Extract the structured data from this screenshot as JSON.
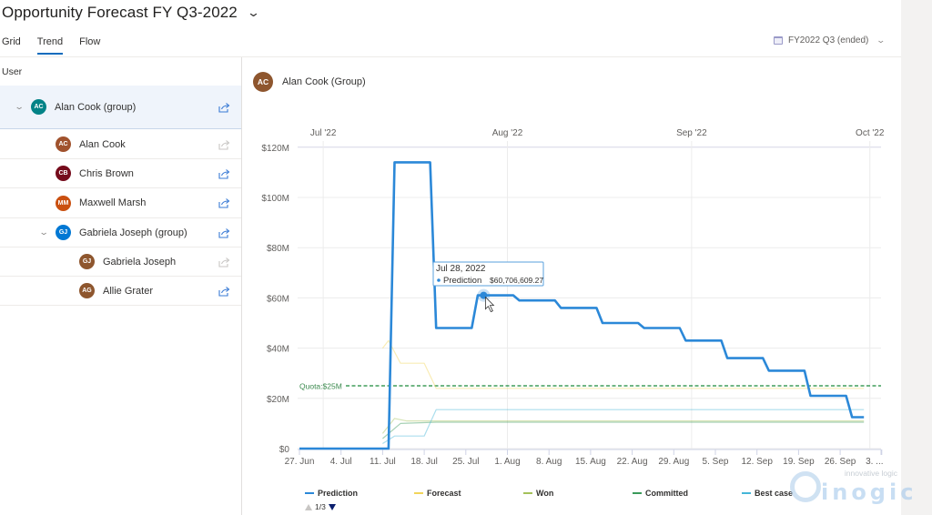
{
  "header": {
    "title": "Opportunity Forecast FY Q3-2022",
    "title_dropdown_icon": "chevron-down-icon",
    "tabs": [
      {
        "label": "Grid",
        "active": false
      },
      {
        "label": "Trend",
        "active": true
      },
      {
        "label": "Flow",
        "active": false
      }
    ],
    "period": {
      "icon": "calendar-icon",
      "label": "FY2022 Q3 (ended)"
    }
  },
  "sidebar": {
    "column_header": "User",
    "rows": [
      {
        "name": "Alan Cook (group)",
        "initials": "AC",
        "color": "#038387",
        "level": 0,
        "expandable": true,
        "selected": true,
        "share_active": true
      },
      {
        "name": "Alan Cook",
        "initials": "AC",
        "color": "#a0522d",
        "level": 1,
        "expandable": false,
        "selected": false,
        "share_active": false
      },
      {
        "name": "Chris Brown",
        "initials": "CB",
        "color": "#750b1c",
        "level": 1,
        "expandable": false,
        "selected": false,
        "share_active": true
      },
      {
        "name": "Maxwell Marsh",
        "initials": "MM",
        "color": "#ca5010",
        "level": 1,
        "expandable": false,
        "selected": false,
        "share_active": true
      },
      {
        "name": "Gabriela Joseph (group)",
        "initials": "GJ",
        "color": "#0078d4",
        "level": 1,
        "expandable": true,
        "selected": false,
        "share_active": true
      },
      {
        "name": "Gabriela Joseph",
        "initials": "GJ",
        "color": "#8e562e",
        "level": 2,
        "expandable": false,
        "selected": false,
        "share_active": false
      },
      {
        "name": "Allie Grater",
        "initials": "AG",
        "color": "#8e562e",
        "level": 2,
        "expandable": false,
        "selected": false,
        "share_active": true
      }
    ]
  },
  "chart_header": {
    "name": "Alan Cook (Group)",
    "initials": "AC",
    "color": "#8e562e"
  },
  "tooltip": {
    "date": "Jul 28, 2022",
    "series": "Prediction",
    "value": "$60,706,609.27"
  },
  "pager": {
    "label": "1/3"
  },
  "watermark": {
    "tagline": "innovative logic",
    "brand": "inogic"
  },
  "chart_data": {
    "type": "line",
    "title": "Alan Cook (Group)",
    "xlabel": "",
    "ylabel": "",
    "ylim": [
      0,
      120000000
    ],
    "y_ticks": [
      "$0",
      "$20M",
      "$40M",
      "$60M",
      "$80M",
      "$100M",
      "$120M"
    ],
    "x_ticks": [
      "27. Jun",
      "4. Jul",
      "11. Jul",
      "18. Jul",
      "25. Jul",
      "1. Aug",
      "8. Aug",
      "15. Aug",
      "22. Aug",
      "29. Aug",
      "5. Sep",
      "12. Sep",
      "19. Sep",
      "26. Sep",
      "3. ..."
    ],
    "x_top_ticks": [
      "Jul '22",
      "Aug '22",
      "Sep '22",
      "Oct '22"
    ],
    "grid": true,
    "legend_position": "bottom",
    "quota": {
      "label": "Quota:$25M",
      "value": 25000000,
      "color": "#1a8a3a"
    },
    "series": [
      {
        "name": "Prediction",
        "color": "#2b88d8",
        "points": [
          [
            "2022-06-27",
            0
          ],
          [
            "2022-07-12",
            0
          ],
          [
            "2022-07-13",
            114000000
          ],
          [
            "2022-07-19",
            114000000
          ],
          [
            "2022-07-20",
            48000000
          ],
          [
            "2022-07-26",
            48000000
          ],
          [
            "2022-07-27",
            61000000
          ],
          [
            "2022-08-02",
            61000000
          ],
          [
            "2022-08-03",
            59000000
          ],
          [
            "2022-08-09",
            59000000
          ],
          [
            "2022-08-10",
            56000000
          ],
          [
            "2022-08-16",
            56000000
          ],
          [
            "2022-08-17",
            50000000
          ],
          [
            "2022-08-23",
            50000000
          ],
          [
            "2022-08-24",
            48000000
          ],
          [
            "2022-08-30",
            48000000
          ],
          [
            "2022-08-31",
            43000000
          ],
          [
            "2022-09-06",
            43000000
          ],
          [
            "2022-09-07",
            36000000
          ],
          [
            "2022-09-13",
            36000000
          ],
          [
            "2022-09-14",
            31000000
          ],
          [
            "2022-09-20",
            31000000
          ],
          [
            "2022-09-21",
            21000000
          ],
          [
            "2022-09-27",
            21000000
          ],
          [
            "2022-09-28",
            12500000
          ],
          [
            "2022-09-30",
            12500000
          ]
        ]
      },
      {
        "name": "Forecast",
        "color": "#f2d55a",
        "points": [
          [
            "2022-07-11",
            40000000
          ],
          [
            "2022-07-12",
            43000000
          ],
          [
            "2022-07-14",
            34000000
          ],
          [
            "2022-07-18",
            34000000
          ],
          [
            "2022-07-20",
            24000000
          ],
          [
            "2022-09-30",
            24000000
          ]
        ]
      },
      {
        "name": "Won",
        "color": "#a4c15a",
        "points": [
          [
            "2022-07-11",
            6000000
          ],
          [
            "2022-07-13",
            12000000
          ],
          [
            "2022-07-15",
            11000000
          ],
          [
            "2022-09-30",
            11000000
          ]
        ]
      },
      {
        "name": "Committed",
        "color": "#3a9a5a",
        "points": [
          [
            "2022-07-11",
            4000000
          ],
          [
            "2022-07-14",
            10000000
          ],
          [
            "2022-07-20",
            10500000
          ],
          [
            "2022-09-30",
            10500000
          ]
        ]
      },
      {
        "name": "Best case",
        "color": "#45b6d8",
        "points": [
          [
            "2022-07-11",
            2000000
          ],
          [
            "2022-07-13",
            5000000
          ],
          [
            "2022-07-18",
            5000000
          ],
          [
            "2022-07-20",
            15500000
          ],
          [
            "2022-09-30",
            15500000
          ]
        ]
      }
    ]
  }
}
